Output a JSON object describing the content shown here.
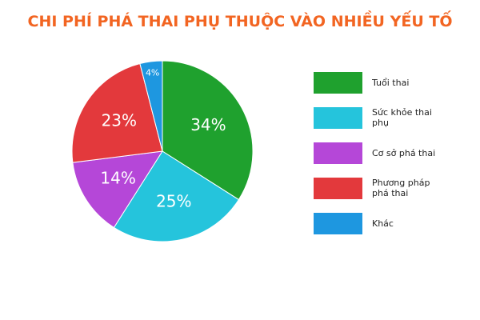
{
  "chart_data": {
    "type": "pie",
    "title": "CHI PHÍ PHÁ THAI PHỤ THUỘC VÀO NHIỀU YẾU TỐ",
    "categories": [
      "Tuổi thai",
      "Sức khỏe thai phụ",
      "Cơ sở phá thai",
      "Phương pháp phá thai",
      "Khác"
    ],
    "values": [
      34,
      25,
      14,
      23,
      4
    ],
    "value_labels": [
      "34%",
      "25%",
      "14%",
      "23%",
      "4%"
    ],
    "colors": [
      "#1fa12e",
      "#25c4dc",
      "#b547d8",
      "#e3393c",
      "#1e97e0"
    ],
    "title_color": "#f26522"
  }
}
